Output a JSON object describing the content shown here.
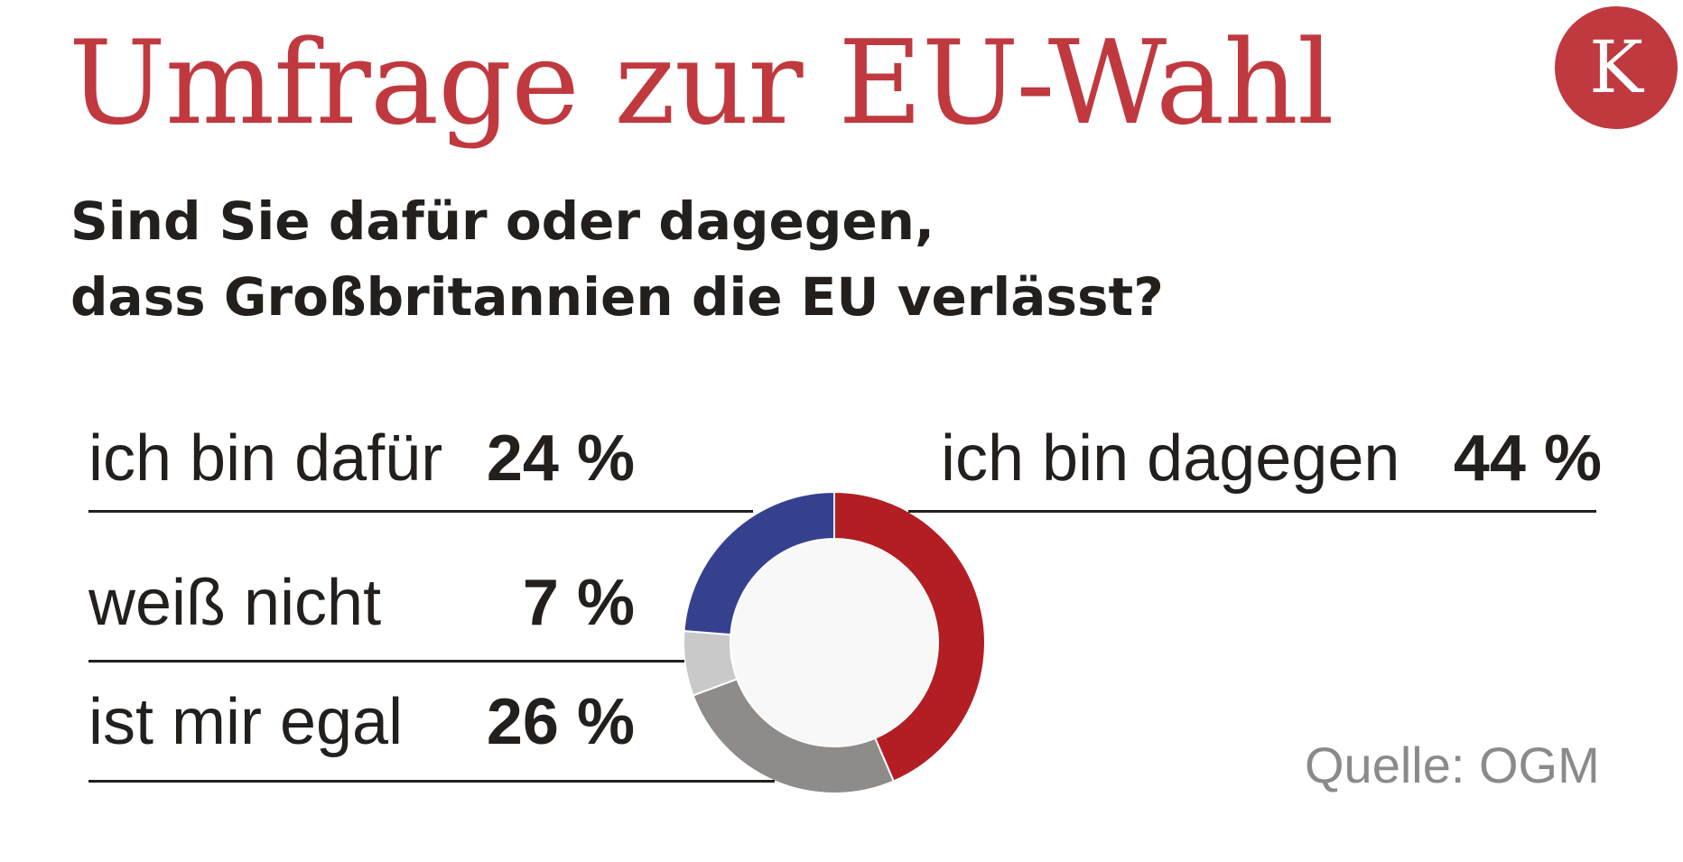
{
  "header": {
    "title": "Umfrage zur EU-Wahl",
    "logo_letter": "K",
    "question_line1": "Sind Sie dafür oder dagegen,",
    "question_line2": "dass Großbritannien die EU verlässt?"
  },
  "chart_data": {
    "type": "pie",
    "variant": "donut",
    "slices": [
      {
        "label": "ich bin dagegen",
        "value": 44,
        "display": "44 %",
        "color": "#b21e23"
      },
      {
        "label": "ist mir egal",
        "value": 26,
        "display": "26 %",
        "color": "#8e8b89"
      },
      {
        "label": "weiß nicht",
        "value": 7,
        "display": "7 %",
        "color": "#c9c9c9"
      },
      {
        "label": "ich bin dafür",
        "value": 24,
        "display": "24 %",
        "color": "#35418f"
      }
    ],
    "start_angle_deg": 0,
    "direction": "clockwise",
    "center_color": "#f8f8f8"
  },
  "labels": {
    "dafuer_label": "ich bin dafür",
    "dafuer_value": "24 %",
    "dagegen_label": "ich bin dagegen",
    "dagegen_value": "44 %",
    "weiss_label": "weiß nicht",
    "weiss_value": "7 %",
    "egal_label": "ist mir egal",
    "egal_value": "26 %"
  },
  "footer": {
    "source": "Quelle: OGM"
  }
}
